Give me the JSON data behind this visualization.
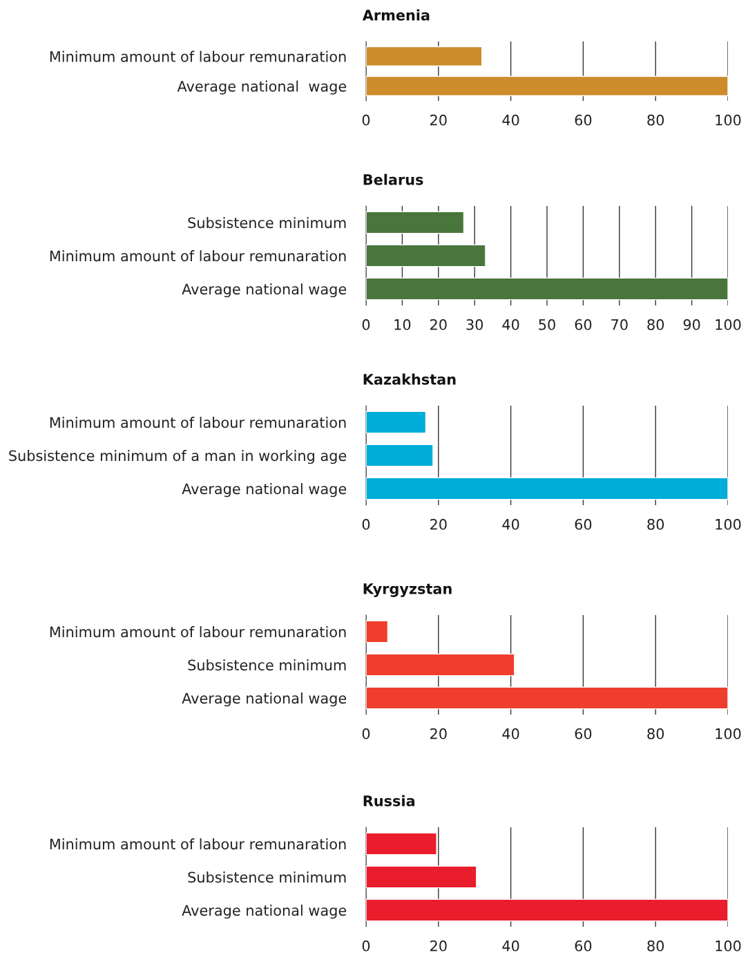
{
  "chart_data": [
    {
      "type": "bar",
      "orientation": "horizontal",
      "title": "Armenia",
      "categories": [
        "Minimum amount of labour remunaration",
        "Average national  wage"
      ],
      "values": [
        32,
        100
      ],
      "color": "#cd8b2b",
      "xlim": [
        0,
        100
      ],
      "xticks": [
        0,
        20,
        40,
        60,
        80,
        100
      ],
      "grid": "x",
      "legend": false
    },
    {
      "type": "bar",
      "orientation": "horizontal",
      "title": "Belarus",
      "categories": [
        "Subsistence minimum",
        "Minimum amount of labour remunaration",
        "Average national wage"
      ],
      "values": [
        27,
        33,
        100
      ],
      "color": "#48763c",
      "xlim": [
        0,
        100
      ],
      "xticks": [
        0,
        10,
        20,
        30,
        40,
        50,
        60,
        70,
        80,
        90,
        100
      ],
      "grid": "x",
      "legend": false
    },
    {
      "type": "bar",
      "orientation": "horizontal",
      "title": "Kazakhstan",
      "categories": [
        "Minimum amount of labour remunaration",
        "Subsistence minimum of a man in working age",
        "Average national wage"
      ],
      "values": [
        16.5,
        18.5,
        100
      ],
      "color": "#00acd8",
      "xlim": [
        0,
        100
      ],
      "xticks": [
        0,
        20,
        40,
        60,
        80,
        100
      ],
      "grid": "x",
      "legend": false
    },
    {
      "type": "bar",
      "orientation": "horizontal",
      "title": "Kyrgyzstan",
      "categories": [
        "Minimum amount of labour remunaration",
        "Subsistence minimum",
        "Average national wage"
      ],
      "values": [
        6,
        41,
        100
      ],
      "color": "#ef3e2c",
      "xlim": [
        0,
        100
      ],
      "xticks": [
        0,
        20,
        40,
        60,
        80,
        100
      ],
      "grid": "x",
      "legend": false
    },
    {
      "type": "bar",
      "orientation": "horizontal",
      "title": "Russia",
      "categories": [
        "Minimum amount of labour remunaration",
        "Subsistence minimum",
        "Average national wage"
      ],
      "values": [
        19.5,
        30.5,
        100
      ],
      "color": "#ea1d2d",
      "xlim": [
        0,
        100
      ],
      "xticks": [
        0,
        20,
        40,
        60,
        80,
        100
      ],
      "grid": "x",
      "legend": false
    }
  ]
}
